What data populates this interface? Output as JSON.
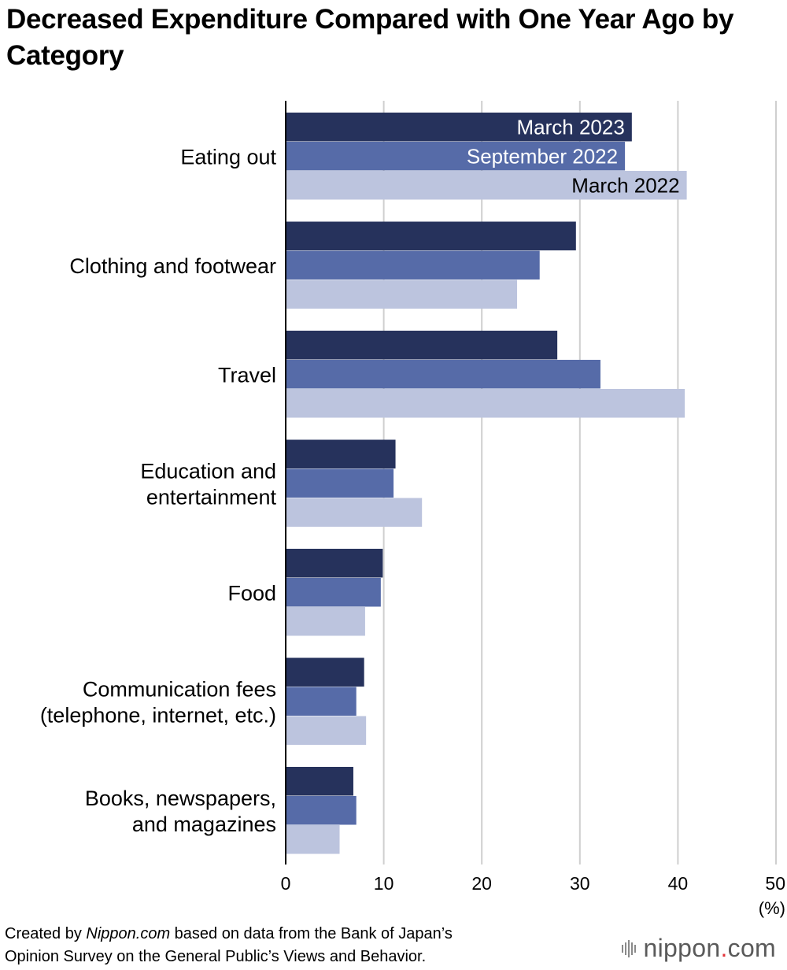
{
  "title": "Decreased Expenditure Compared with One Year Ago by Category",
  "footer": {
    "prefix": "Created by ",
    "source_name": "Nippon.com",
    "suffix": " based on data from the Bank of Japan’s",
    "line2": "Opinion Survey on the General Public’s Views and Behavior."
  },
  "logo": {
    "name": "nippon",
    "dot": ".",
    "tld": "com"
  },
  "colors": {
    "march_2023": "#26325c",
    "september_2022": "#566ba8",
    "march_2022": "#bcc4de",
    "grid": "#cfcfcf"
  },
  "chart_data": {
    "type": "bar",
    "orientation": "horizontal",
    "title": "Decreased Expenditure Compared with One Year Ago by Category",
    "categories": [
      [
        "Eating out"
      ],
      [
        "Clothing and footwear"
      ],
      [
        "Travel"
      ],
      [
        "Education and",
        "entertainment"
      ],
      [
        "Food"
      ],
      [
        "Communication fees",
        "(telephone, internet, etc.)"
      ],
      [
        "Books, newspapers,",
        "and magazines"
      ]
    ],
    "series": [
      {
        "name": "March 2023",
        "color": "#26325c",
        "label_color": "#ffffff",
        "values": [
          35.3,
          29.6,
          27.7,
          11.2,
          9.9,
          8.0,
          6.9
        ]
      },
      {
        "name": "September 2022",
        "color": "#566ba8",
        "label_color": "#ffffff",
        "values": [
          34.6,
          25.9,
          32.1,
          11.0,
          9.7,
          7.2,
          7.2
        ]
      },
      {
        "name": "March 2022",
        "color": "#bcc4de",
        "label_color": "#000000",
        "values": [
          40.9,
          23.6,
          40.7,
          13.9,
          8.1,
          8.2,
          5.5
        ]
      }
    ],
    "xlim": [
      0,
      50
    ],
    "xticks": [
      0,
      10,
      20,
      30,
      40,
      50
    ],
    "xunit": "(%)",
    "grid": true,
    "legend": "inline-on-first-category"
  }
}
